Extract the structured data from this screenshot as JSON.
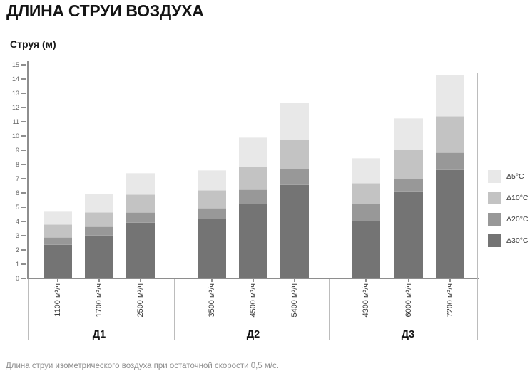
{
  "page": {
    "title": "ДЛИНА СТРУИ ВОЗДУХА",
    "caption": "Длина струи изометрического воздуха при остаточной скорости 0,5 м/с."
  },
  "chart_data": {
    "type": "bar",
    "stacked": true,
    "title": "ДЛИНА СТРУИ ВОЗДУХА",
    "ylabel": "Струя (м)",
    "ylim": [
      0,
      15
    ],
    "ytick_step": 1,
    "yticks": [
      0,
      1,
      2,
      3,
      4,
      5,
      6,
      7,
      8,
      9,
      10,
      11,
      12,
      13,
      14,
      15
    ],
    "grid": false,
    "legend_position": "right",
    "groups": [
      {
        "label": "Д1",
        "categories": [
          "1100 м³/ч",
          "1700 м³/ч",
          "2500 м³/ч"
        ]
      },
      {
        "label": "Д2",
        "categories": [
          "3500 м³/ч",
          "4500 м³/ч",
          "5400 м³/ч"
        ]
      },
      {
        "label": "Д3",
        "categories": [
          "4300 м³/ч",
          "6000 м³/ч",
          "7200 м³/ч"
        ]
      }
    ],
    "stack_order_bottom_to_top": [
      "Δ30°C",
      "Δ20°C",
      "Δ10°C",
      "Δ5°C"
    ],
    "series": [
      {
        "name": "Δ30°C",
        "color": "#747474",
        "values": [
          2.4,
          3.05,
          3.95,
          4.2,
          5.25,
          6.6,
          4.05,
          6.15,
          7.65
        ]
      },
      {
        "name": "Δ20°C",
        "color": "#989898",
        "values": [
          0.5,
          0.6,
          0.7,
          0.75,
          1.0,
          1.1,
          1.2,
          0.85,
          1.2
        ]
      },
      {
        "name": "Δ10°C",
        "color": "#c3c3c3",
        "values": [
          0.9,
          1.0,
          1.25,
          1.25,
          1.6,
          2.05,
          1.45,
          2.05,
          2.55
        ]
      },
      {
        "name": "Δ5°C",
        "color": "#e8e8e8",
        "values": [
          0.95,
          1.3,
          1.5,
          1.4,
          2.05,
          2.6,
          1.75,
          2.2,
          2.9
        ]
      }
    ],
    "cumulative_tops": [
      [
        2.4,
        2.9,
        3.8,
        4.75
      ],
      [
        3.05,
        3.65,
        4.65,
        5.95
      ],
      [
        3.95,
        4.65,
        5.9,
        7.4
      ],
      [
        4.2,
        4.95,
        6.2,
        7.6
      ],
      [
        5.25,
        6.25,
        7.85,
        9.9
      ],
      [
        6.6,
        7.7,
        9.75,
        12.35
      ],
      [
        4.05,
        5.25,
        6.7,
        8.45
      ],
      [
        6.15,
        7.0,
        9.05,
        11.25
      ],
      [
        7.65,
        8.85,
        11.4,
        14.3
      ]
    ],
    "legend": [
      {
        "label": "Δ5°C",
        "color": "#e8e8e8"
      },
      {
        "label": "Δ10°C",
        "color": "#c3c3c3"
      },
      {
        "label": "Δ20°C",
        "color": "#989898"
      },
      {
        "label": "Δ30°C",
        "color": "#747474"
      }
    ]
  }
}
